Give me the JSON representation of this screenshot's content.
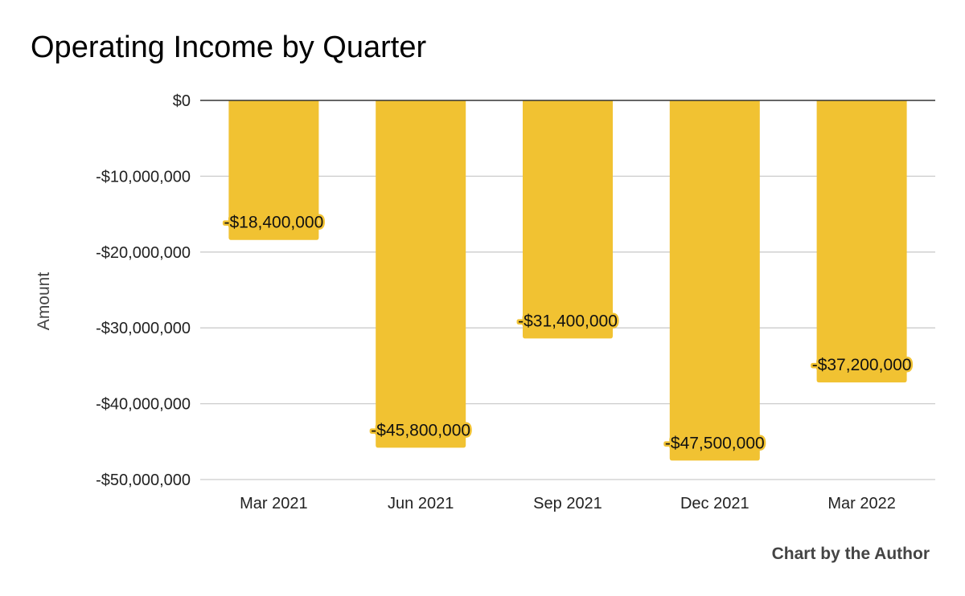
{
  "chart_data": {
    "type": "bar",
    "title": "Operating Income by Quarter",
    "xlabel": "",
    "ylabel": "Amount",
    "categories": [
      "Mar 2021",
      "Jun 2021",
      "Sep 2021",
      "Dec 2021",
      "Mar 2022"
    ],
    "series": [
      {
        "values": [
          -18400000,
          -45800000,
          -31400000,
          -47500000,
          -37200000
        ],
        "labels": [
          "-$18,400,000",
          "-$45,800,000",
          "-$31,400,000",
          "-$47,500,000",
          "-$37,200,000"
        ]
      }
    ],
    "ylim": [
      -50000000,
      0
    ],
    "yticks": [
      0,
      -10000000,
      -20000000,
      -30000000,
      -40000000,
      -50000000
    ],
    "ytick_labels": [
      "$0",
      "-$10,000,000",
      "-$20,000,000",
      "-$30,000,000",
      "-$40,000,000",
      "-$50,000,000"
    ],
    "grid": true,
    "legend": "none",
    "colors": {
      "bar": "#f1c232",
      "grid": "#cccccc",
      "zero_line": "#333333",
      "text": "#222222",
      "axis_title": "#444444"
    }
  },
  "footer": {
    "credit": "Chart by the Author"
  }
}
